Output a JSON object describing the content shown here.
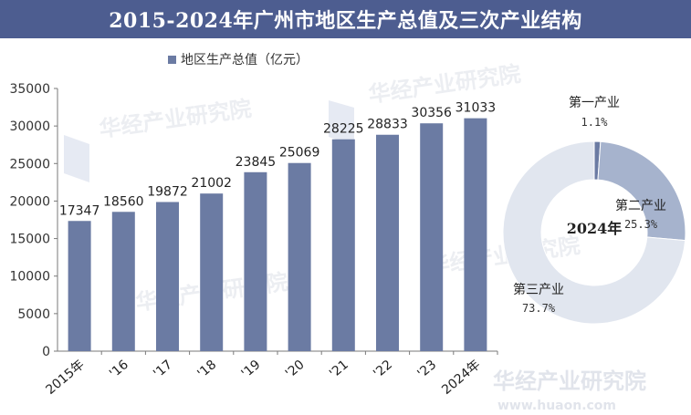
{
  "page_title": "2015-2024年广州市地区生产总值及三次产业结构",
  "watermark": {
    "name": "华经产业研究院",
    "url": "www.huaon.com"
  },
  "colors": {
    "title_bg": "#4d5d90",
    "bar": "#6b7ba3",
    "donut_primary": "#6b7ba3",
    "donut_secondary": "#a6b3cd",
    "donut_tertiary": "#e1e6ef"
  },
  "chart_data": [
    {
      "type": "bar",
      "legend": "地区生产总值（亿元）",
      "legend_placement": "top",
      "categories": [
        "2015年",
        "'16",
        "'17",
        "'18",
        "'19",
        "'20",
        "'21",
        "'22",
        "'23",
        "2024年"
      ],
      "values": [
        17347,
        18560,
        19872,
        21002,
        23845,
        25069,
        28225,
        28833,
        30356,
        31033
      ],
      "ylim": [
        0,
        35000
      ],
      "yticks": [
        0,
        5000,
        10000,
        15000,
        20000,
        25000,
        30000,
        35000
      ],
      "grid": false
    },
    {
      "type": "pie",
      "style": "donut",
      "center_label": "2024年",
      "slices": [
        {
          "label": "第一产业",
          "value": 1.1,
          "value_label": "1.1%"
        },
        {
          "label": "第二产业",
          "value": 25.3,
          "value_label": "25.3%"
        },
        {
          "label": "第三产业",
          "value": 73.7,
          "value_label": "73.7%"
        }
      ]
    }
  ]
}
